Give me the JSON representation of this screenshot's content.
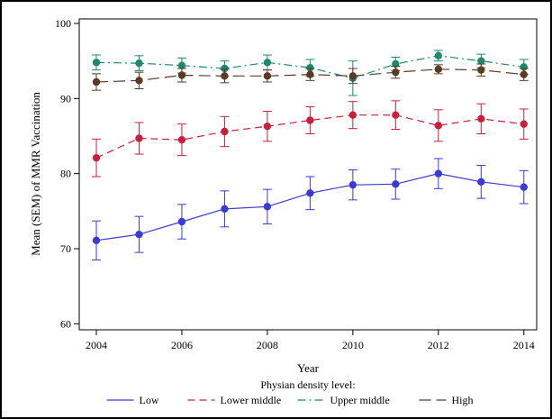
{
  "chart_data": {
    "type": "line",
    "xlabel": "Year",
    "ylabel": "Mean (SEM) of MMR Vaccination",
    "x": [
      2004,
      2005,
      2006,
      2007,
      2008,
      2009,
      2010,
      2011,
      2012,
      2013,
      2014
    ],
    "x_ticks": [
      2004,
      2006,
      2008,
      2010,
      2012,
      2014
    ],
    "y_ticks": [
      60,
      70,
      80,
      90,
      100
    ],
    "xlim": [
      2003.6,
      2014.3
    ],
    "ylim": [
      59.2,
      100.6
    ],
    "grid": false,
    "legend_title": "Physian density level:",
    "legend_position": "bottom",
    "series": [
      {
        "name": "Low",
        "color": "#3a3ad6",
        "dash": "solid",
        "values": [
          71.1,
          71.9,
          73.6,
          75.3,
          75.6,
          77.4,
          78.5,
          78.6,
          80.0,
          78.9,
          78.2
        ],
        "err": [
          2.6,
          2.4,
          2.3,
          2.4,
          2.3,
          2.2,
          2.0,
          2.0,
          2.0,
          2.2,
          2.2
        ]
      },
      {
        "name": "Lower middle",
        "color": "#c8203a",
        "dash": "dashed",
        "values": [
          82.1,
          84.7,
          84.5,
          85.6,
          86.3,
          87.1,
          87.8,
          87.8,
          86.4,
          87.3,
          86.6
        ],
        "err": [
          2.5,
          2.1,
          2.1,
          2.0,
          2.0,
          1.8,
          1.8,
          1.9,
          2.1,
          2.0,
          2.0
        ]
      },
      {
        "name": "Upper middle",
        "color": "#1b8a6b",
        "dash": "dashdot",
        "values": [
          94.8,
          94.7,
          94.4,
          94.0,
          94.8,
          94.1,
          92.7,
          94.6,
          95.7,
          95.0,
          94.2
        ],
        "err": [
          1.0,
          1.0,
          1.0,
          1.0,
          1.0,
          1.1,
          2.3,
          0.9,
          0.7,
          0.9,
          1.0
        ]
      },
      {
        "name": "High",
        "color": "#5a3a22",
        "dash": "longdash",
        "values": [
          92.2,
          92.4,
          93.1,
          93.0,
          93.0,
          93.2,
          93.0,
          93.5,
          93.9,
          93.8,
          93.2
        ],
        "err": [
          1.1,
          1.1,
          0.9,
          0.9,
          0.8,
          0.8,
          1.0,
          0.8,
          0.6,
          0.8,
          0.8
        ]
      }
    ]
  }
}
